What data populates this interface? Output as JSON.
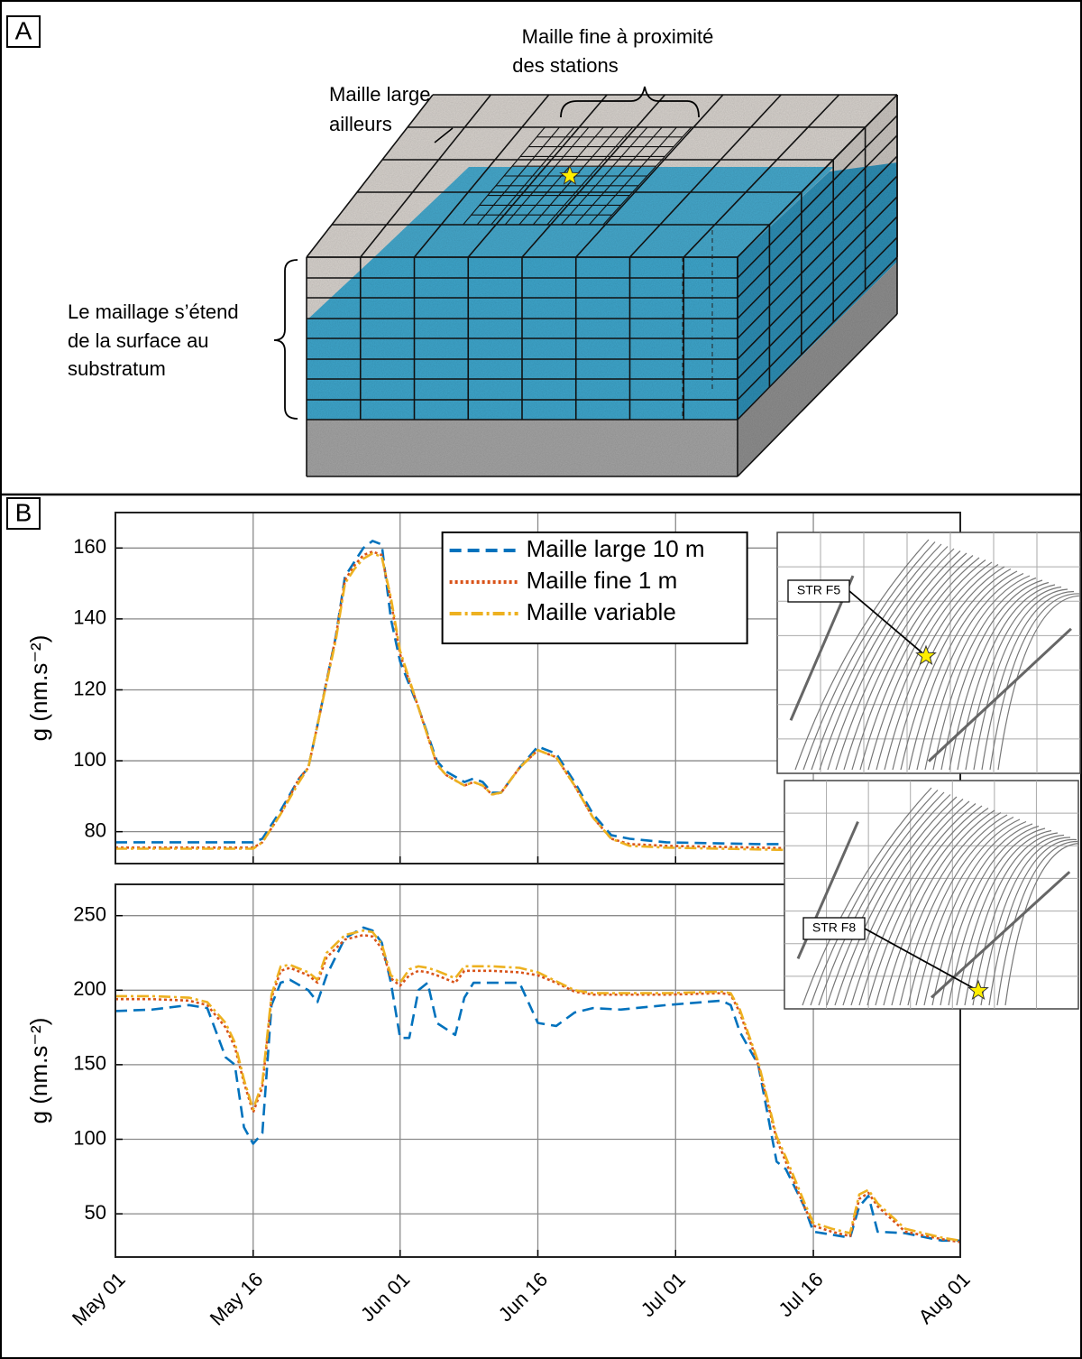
{
  "panel_a": {
    "label": "A",
    "fine_mesh_label": [
      "Maille fine à proximité",
      "des stations"
    ],
    "coarse_mesh_label": [
      "Maille large",
      "ailleurs"
    ],
    "extent_label": [
      "Le maillage s’étend",
      "de la surface au",
      "substratum"
    ]
  },
  "panel_b": {
    "label": "B"
  },
  "chart_data": [
    {
      "type": "line",
      "ylabel": "g (nm.s⁻²)",
      "inset_label": "STR F5",
      "grid": true,
      "legend": "top",
      "show_xtick_labels": false,
      "x": [
        0,
        4,
        8,
        12,
        15,
        16,
        18,
        20,
        21,
        22,
        24,
        25,
        26,
        27,
        28,
        29,
        30,
        31,
        33,
        35,
        36,
        38,
        39,
        40,
        41,
        42,
        44,
        46,
        48,
        50,
        52,
        54,
        56,
        60,
        70,
        80,
        92
      ],
      "xlim": [
        0,
        92
      ],
      "xticks": [
        0,
        15,
        31,
        46,
        61,
        76,
        92
      ],
      "ylim": [
        71,
        170
      ],
      "yticks": [
        80,
        100,
        120,
        140,
        160
      ],
      "series": [
        {
          "name": "Maille large 10 m",
          "color": "#0072bd",
          "dash": "dashed",
          "values": [
            77,
            77,
            77,
            77,
            77,
            78,
            86,
            95,
            98,
            110,
            135,
            152,
            156,
            160,
            162,
            161,
            140,
            128,
            115,
            100,
            97,
            94,
            95,
            94,
            91,
            91,
            98,
            104,
            102,
            94,
            85,
            79,
            78,
            77,
            76.5,
            76.5,
            76
          ]
        },
        {
          "name": "Maille fine 1 m",
          "color": "#d95319",
          "dash": "dotted",
          "values": [
            75.5,
            75.5,
            75.5,
            75.5,
            75.5,
            77,
            85,
            95,
            98,
            110,
            135,
            151,
            155,
            158,
            159,
            158,
            145,
            130,
            115,
            99,
            96,
            93,
            94,
            93,
            90.5,
            91,
            98,
            103,
            101,
            93,
            84,
            78,
            76.5,
            76,
            75.5,
            75,
            74.5
          ]
        },
        {
          "name": "Maille variable",
          "color": "#edb120",
          "dash": "dashdot",
          "values": [
            75.2,
            75.2,
            75.2,
            75.2,
            75.2,
            77,
            85,
            94,
            98,
            110,
            134,
            150,
            154,
            157,
            158.5,
            157.5,
            146,
            131,
            115,
            99,
            96,
            93,
            94,
            93,
            90.5,
            91,
            98,
            103,
            101,
            93,
            84,
            78,
            76,
            75.5,
            75,
            74.5,
            74.5
          ]
        }
      ]
    },
    {
      "type": "line",
      "ylabel": "g (nm.s⁻²)",
      "inset_label": "STR F8",
      "grid": true,
      "x": [
        0,
        4,
        8,
        10,
        12,
        13,
        14,
        15,
        16,
        17,
        18,
        19,
        21,
        22,
        23,
        25,
        27,
        28,
        29,
        30,
        31,
        32,
        33,
        34,
        35,
        37,
        38,
        39,
        41,
        44,
        46,
        48,
        50,
        52,
        55,
        60,
        66,
        67,
        68,
        70,
        72,
        73,
        75,
        76,
        78,
        80,
        81,
        82,
        83,
        86,
        90,
        92
      ],
      "xlim": [
        0,
        92
      ],
      "xticks": [
        {
          "value": 0,
          "label": "May 01"
        },
        {
          "value": 15,
          "label": "May 16"
        },
        {
          "value": 31,
          "label": "Jun 01"
        },
        {
          "value": 46,
          "label": "Jun 16"
        },
        {
          "value": 61,
          "label": "Jul 01"
        },
        {
          "value": 76,
          "label": "Jul 16"
        },
        {
          "value": 92,
          "label": "Aug 01"
        }
      ],
      "ylim": [
        21,
        271
      ],
      "yticks": [
        50,
        100,
        150,
        200,
        250
      ],
      "series": [
        {
          "color": "#0072bd",
          "dash": "dashed",
          "values": [
            186,
            187,
            190,
            188,
            155,
            150,
            108,
            97,
            104,
            190,
            205,
            207,
            200,
            192,
            210,
            235,
            242,
            240,
            232,
            205,
            168,
            168,
            200,
            205,
            178,
            170,
            195,
            205,
            205,
            205,
            178,
            176,
            185,
            188,
            187,
            190,
            193,
            190,
            172,
            150,
            85,
            80,
            55,
            38,
            36,
            34,
            55,
            62,
            38,
            37,
            32,
            32
          ]
        },
        {
          "color": "#d95319",
          "dash": "dotted",
          "values": [
            194,
            194,
            193,
            190,
            175,
            162,
            138,
            118,
            135,
            195,
            213,
            215,
            210,
            205,
            222,
            234,
            237,
            236,
            228,
            208,
            203,
            210,
            213,
            212,
            210,
            205,
            213,
            213,
            213,
            212,
            210,
            205,
            199,
            197,
            197,
            197,
            198,
            197,
            185,
            150,
            100,
            85,
            55,
            42,
            38,
            35,
            60,
            64,
            55,
            38,
            33,
            31
          ]
        },
        {
          "color": "#edb120",
          "dash": "dashdot",
          "values": [
            196,
            196,
            195,
            192,
            178,
            165,
            140,
            120,
            138,
            197,
            216,
            217,
            212,
            207,
            225,
            237,
            240,
            239,
            231,
            210,
            205,
            214,
            216,
            215,
            213,
            208,
            216,
            216,
            216,
            215,
            212,
            206,
            200,
            198,
            198,
            198,
            199,
            198,
            187,
            152,
            102,
            88,
            58,
            44,
            40,
            37,
            63,
            66,
            57,
            40,
            34,
            32
          ]
        }
      ]
    }
  ]
}
